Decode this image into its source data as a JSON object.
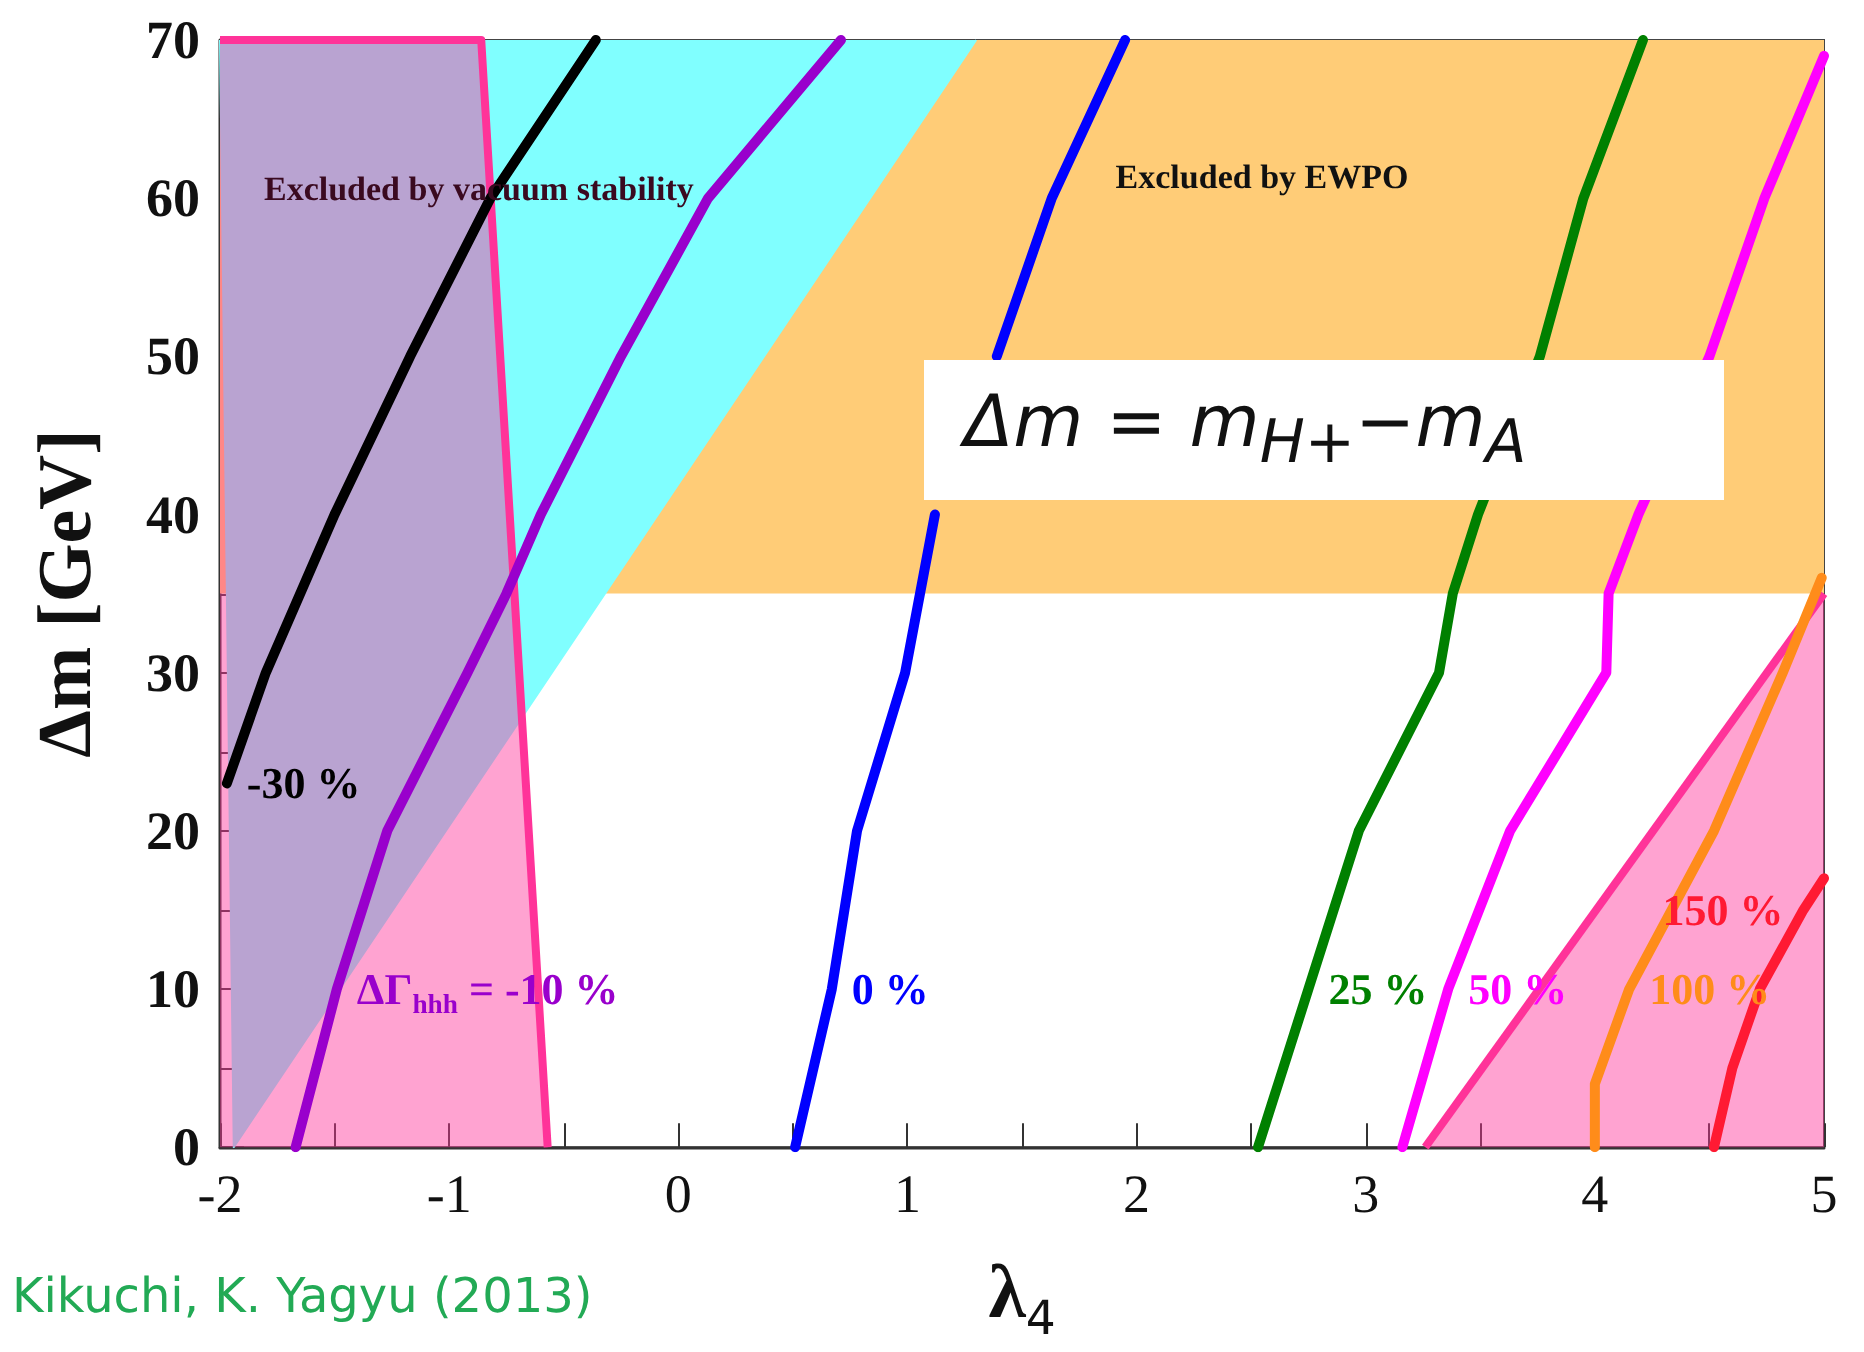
{
  "chart_data": {
    "type": "line",
    "xlabel": "λ$_{4}$",
    "ylabel": "Δm [GeV]",
    "xlim": [
      -2,
      5
    ],
    "ylim": [
      0,
      70
    ],
    "xticks": [
      -2,
      {
        "value": -1.5,
        "label": null
      },
      -1,
      {
        "value": -0.5,
        "label": null
      },
      0,
      {
        "value": 0.5,
        "label": null
      },
      1,
      {
        "value": 1.5,
        "label": null
      },
      2,
      {
        "value": 2.5,
        "label": null
      },
      3,
      {
        "value": 3.5,
        "label": null
      },
      4,
      {
        "value": 4.5,
        "label": null
      },
      5
    ],
    "yticks": [
      0,
      {
        "value": 5,
        "label": null
      },
      10,
      {
        "value": 15,
        "label": null
      },
      20,
      {
        "value": 25,
        "label": null
      },
      30,
      {
        "value": 35,
        "label": null
      },
      40,
      {
        "value": 45,
        "label": null
      },
      50,
      {
        "value": 55,
        "label": null
      },
      60,
      {
        "value": 65,
        "label": null
      },
      70
    ],
    "line_style": "solid",
    "annotations": [
      "Δm = m$_{H+}$−m$_{A}$",
      "Excluded by vacuum stability",
      "Kikuchi, K. Yagyu (2013)"
    ],
    "bands": [
      {
        "axis": "y",
        "from": 35,
        "to": 70,
        "label": "Excluded by EWPO",
        "color": "#ffcc77"
      }
    ],
    "series": [
      {
        "type": "area",
        "color": "#80ffff",
        "x": [
          -2,
          -1.94,
          1.3
        ],
        "values": [
          70,
          0,
          70
        ]
      },
      {
        "name": "-30 %",
        "color": "#000000",
        "x": [
          -1.97,
          -1.8,
          -1.5,
          -1.17,
          -0.82,
          -0.36
        ],
        "values": [
          23,
          30,
          40,
          50,
          60,
          70
        ]
      },
      {
        "name": "ΔΓ$_{hhh}$ = -10 %",
        "color": "#9900cc",
        "x": [
          -1.67,
          -1.49,
          -1.27,
          -0.92,
          -0.75,
          -0.6,
          -0.25,
          0.13,
          0.71
        ],
        "values": [
          0,
          10,
          20,
          30,
          35,
          40,
          50,
          60,
          70
        ]
      },
      {
        "name": "0 %",
        "color": "#0000ff",
        "x": [
          0.51,
          0.67,
          0.78,
          0.99,
          1.12,
          1.18,
          1.39,
          1.63,
          1.95
        ],
        "values": [
          0,
          10,
          20,
          30,
          40,
          null,
          50,
          60,
          70
        ]
      },
      {
        "name": "25 %",
        "color": "#008000",
        "x": [
          2.53,
          2.75,
          2.97,
          3.32,
          3.38,
          3.49,
          3.76,
          3.95,
          4.21
        ],
        "values": [
          0,
          10,
          20,
          30,
          35,
          40,
          50,
          60,
          70
        ]
      },
      {
        "name": "50 %",
        "color": "#ff00ff",
        "x": [
          3.16,
          3.36,
          3.63,
          4.05,
          4.06,
          4.19,
          4.5,
          4.74,
          5
        ],
        "values": [
          0,
          10,
          20,
          30,
          35,
          40,
          50,
          60,
          69
        ]
      },
      {
        "name": "100 %",
        "color": "#ff8c1a",
        "x": [
          4.0,
          4.0,
          4.15,
          4.52,
          4.82,
          4.99
        ],
        "values": [
          0,
          4,
          10,
          20,
          30,
          36
        ]
      },
      {
        "name": "150 %",
        "color": "#ff1a33",
        "x": [
          4.52,
          4.6,
          4.72,
          4.91,
          5
        ],
        "values": [
          0,
          5,
          10,
          15,
          17
        ]
      },
      {
        "type": "area",
        "color": "#ff3399",
        "x": [
          -2,
          -0.86,
          -0.57
        ],
        "values": [
          70,
          70,
          0
        ]
      },
      {
        "type": "area",
        "color": "#ff3399",
        "x": [
          3.26,
          5
        ],
        "values": [
          0,
          35
        ]
      }
    ]
  }
}
